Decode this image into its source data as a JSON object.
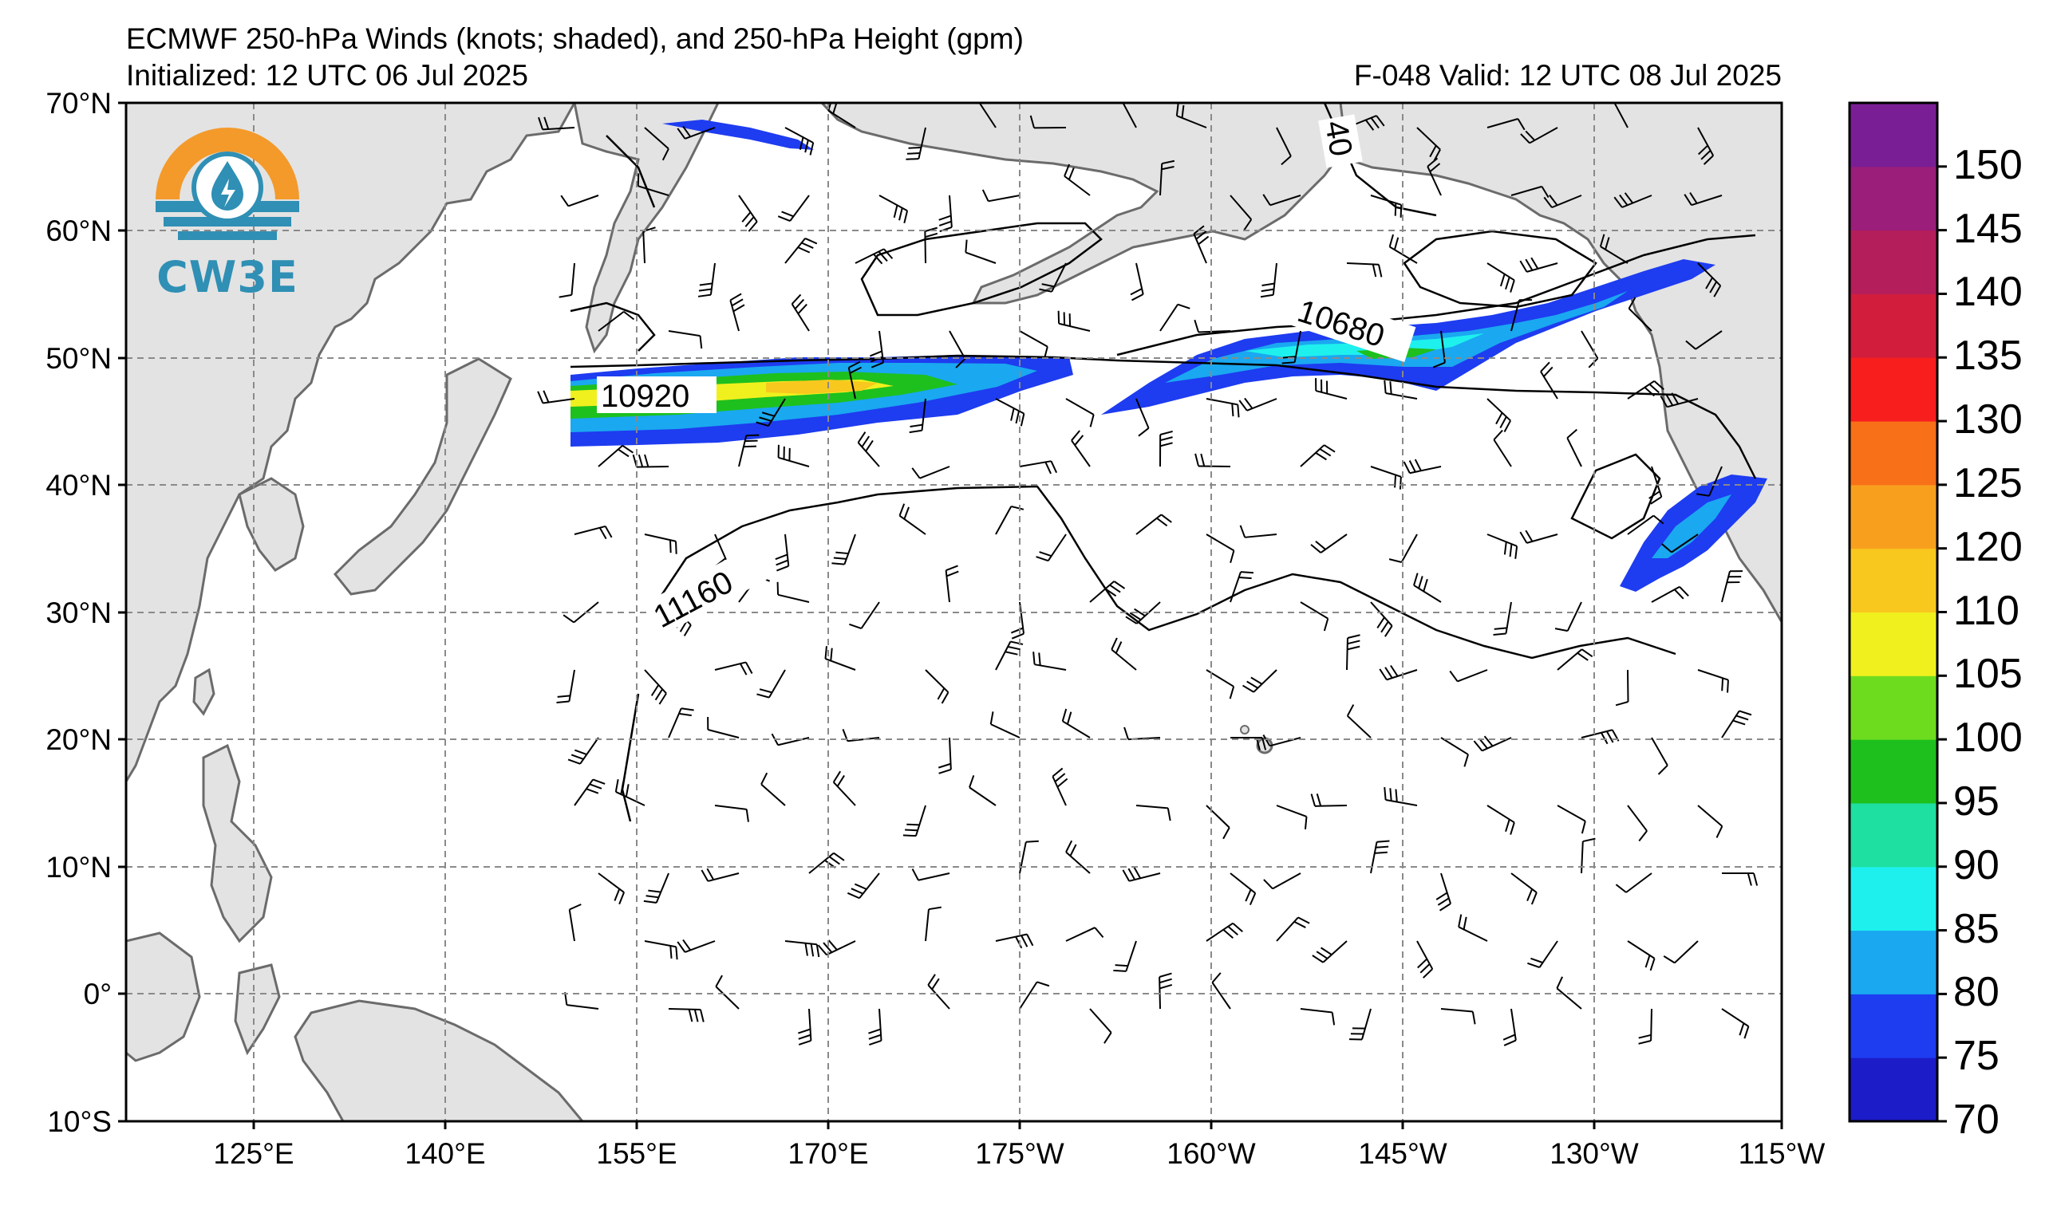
{
  "title": {
    "line1": "ECMWF 250-hPa Winds (knots; shaded), and 250-hPa Height (gpm)",
    "initialized": "Initialized: 12 UTC 06 Jul 2025",
    "valid": "F-048  Valid: 12 UTC 08 Jul 2025"
  },
  "logo": {
    "text": "CW3E",
    "colors": {
      "orange": "#f39a2b",
      "blue": "#2f8fb4"
    }
  },
  "map": {
    "latitude_labels": [
      "70°N",
      "60°N",
      "50°N",
      "40°N",
      "30°N",
      "20°N",
      "10°N",
      "0°",
      "10°S"
    ],
    "longitude_labels": [
      "125°E",
      "140°E",
      "155°E",
      "170°E",
      "175°W",
      "160°W",
      "145°W",
      "130°W",
      "115°W"
    ],
    "contour_labels": [
      "10920",
      "10680",
      "11160",
      "40"
    ],
    "land_color": "#e3e3e3",
    "ocean_color": "#ffffff",
    "grid_color": "#8a8a8a"
  },
  "colorbar": {
    "labels": [
      "70",
      "75",
      "80",
      "85",
      "90",
      "95",
      "100",
      "105",
      "110",
      "120",
      "125",
      "130",
      "135",
      "140",
      "145",
      "150"
    ],
    "colors": [
      "#1c1cc8",
      "#1e3cf0",
      "#1aa8f0",
      "#1ef0ee",
      "#1ee0a0",
      "#1ec01e",
      "#6edc1e",
      "#f0f01e",
      "#f8c81e",
      "#f8a01e",
      "#f87018",
      "#f81e1e",
      "#d21e3c",
      "#b41e5a",
      "#9a1e7a",
      "#7a1e96"
    ]
  }
}
